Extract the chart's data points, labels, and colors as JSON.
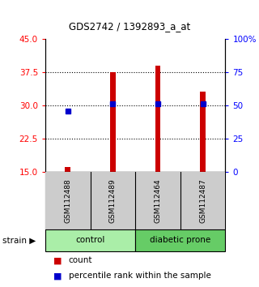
{
  "title": "GDS2742 / 1392893_a_at",
  "samples": [
    "GSM112488",
    "GSM112489",
    "GSM112464",
    "GSM112487"
  ],
  "counts": [
    16.2,
    37.5,
    39.0,
    33.2
  ],
  "percentiles": [
    46.0,
    51.5,
    51.5,
    51.5
  ],
  "y_min": 15,
  "y_max": 45,
  "y_ticks": [
    15,
    22.5,
    30,
    37.5,
    45
  ],
  "y2_ticks": [
    0,
    25,
    50,
    75,
    100
  ],
  "bar_color": "#CC0000",
  "percentile_color": "#0000CC",
  "bar_width": 0.12,
  "baseline": 15,
  "sample_bg_color": "#CCCCCC",
  "control_color": "#AAEEA8",
  "diabetic_color": "#66CC66",
  "legend_count_color": "#CC0000",
  "legend_pct_color": "#0000CC",
  "grid_ticks": [
    22.5,
    30,
    37.5
  ]
}
